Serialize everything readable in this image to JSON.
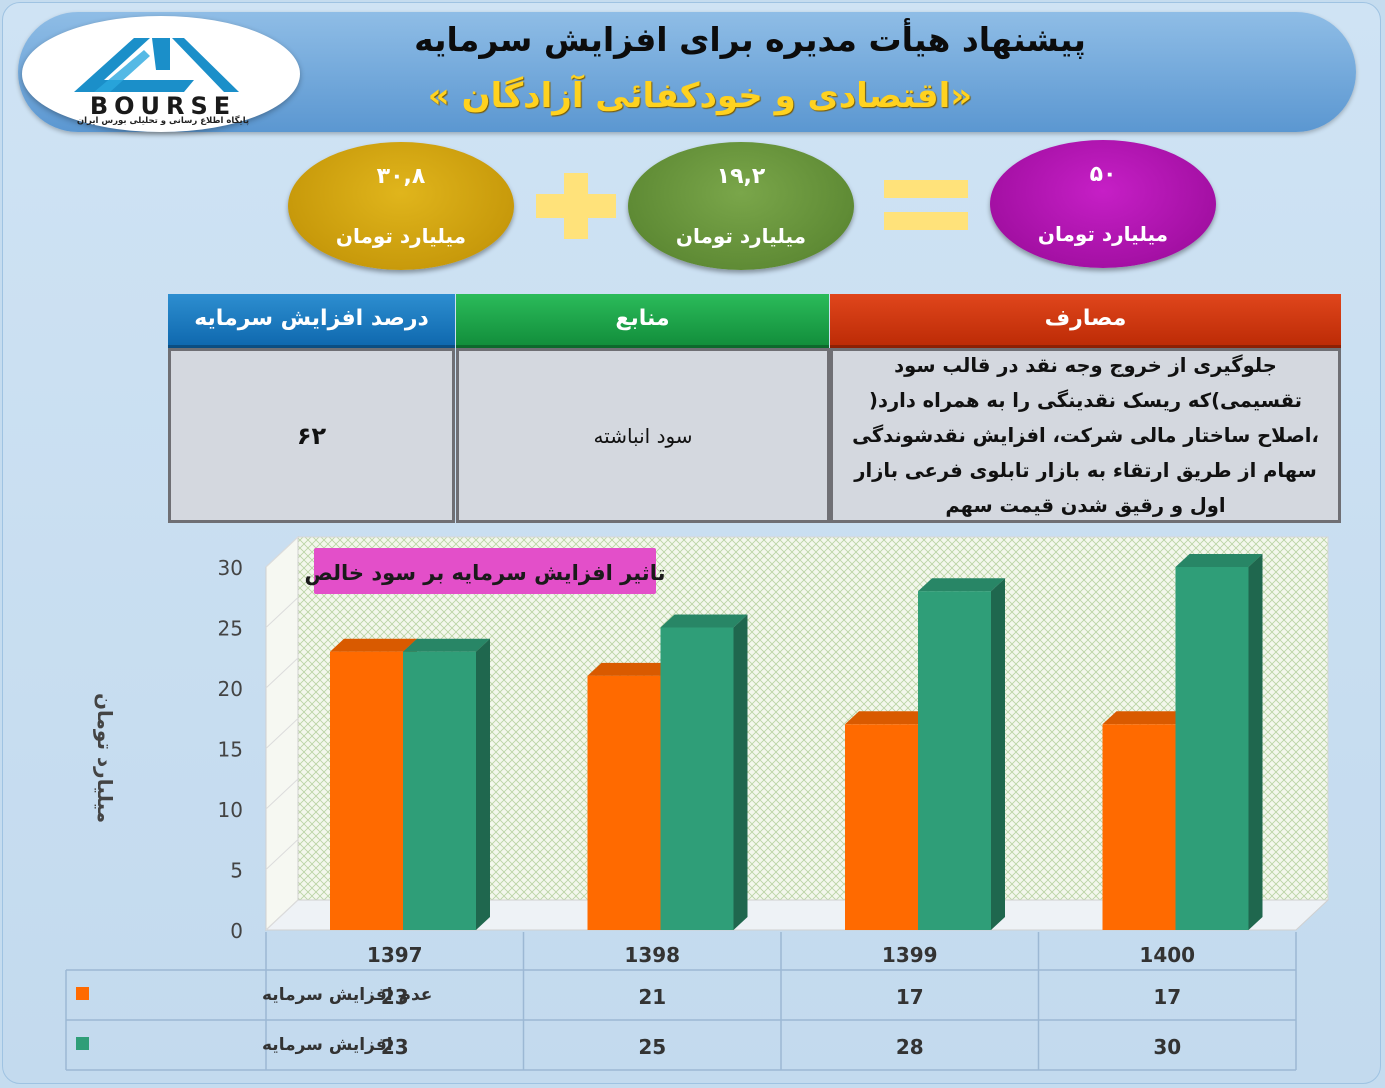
{
  "header": {
    "title": "پیشنهاد هیأت مدیره برای افزایش سرمایه",
    "company": "«اقتصادی و خودکفائی آزادگان »"
  },
  "logo": {
    "wordmark": "BOURSE",
    "tagline": "پایگاه اطلاع رسانی و تحلیلی بورس ایران"
  },
  "equation": {
    "left_value": "۳۰,۸",
    "middle_value": "۱۹,۲",
    "right_value": "۵۰",
    "unit": "میلیارد تومان",
    "left_color": "#c89a0b",
    "middle_color": "#5f8b35",
    "right_color": "#a410a4",
    "operator_color": "#ffe27a"
  },
  "table": {
    "headers": {
      "percent": "درصد افزایش سرمایه",
      "sources": "منابع",
      "costs": "مصارف"
    },
    "values": {
      "percent": "۶۲",
      "sources": "سود انباشته",
      "costs": "جلوگیری از خروج وجه نقد در قالب سود تقسیمی)که ریسک نقدینگی را به همراه دارد( ،اصلاح ساختار مالی شرکت، افزایش نقدشوندگی سهام از طریق ارتقاء به بازار تابلوی فرعی بازار اول و رقیق شدن قیمت سهم"
    },
    "colors": {
      "percent": "#0e67ad",
      "sources": "#118c3a",
      "costs": "#bb2a05"
    }
  },
  "chart_data": {
    "type": "bar",
    "title": "تاثیر افزایش سرمایه بر سود خالص",
    "ylabel": "میلیارد تومان",
    "xlabel": "",
    "ylim": [
      0,
      30
    ],
    "yticks": [
      0,
      5,
      10,
      15,
      20,
      25,
      30
    ],
    "categories": [
      "1397",
      "1398",
      "1399",
      "1400"
    ],
    "series": [
      {
        "name": "عدم افزایش سرمایه",
        "color": "#ff6a00",
        "values": [
          23,
          21,
          17,
          17
        ]
      },
      {
        "name": "افزایش سرمایه",
        "color": "#2f9e78",
        "values": [
          23,
          25,
          28,
          30
        ]
      }
    ],
    "grid": false,
    "legend": "data-table-left",
    "data_table": true,
    "three_d": true
  }
}
